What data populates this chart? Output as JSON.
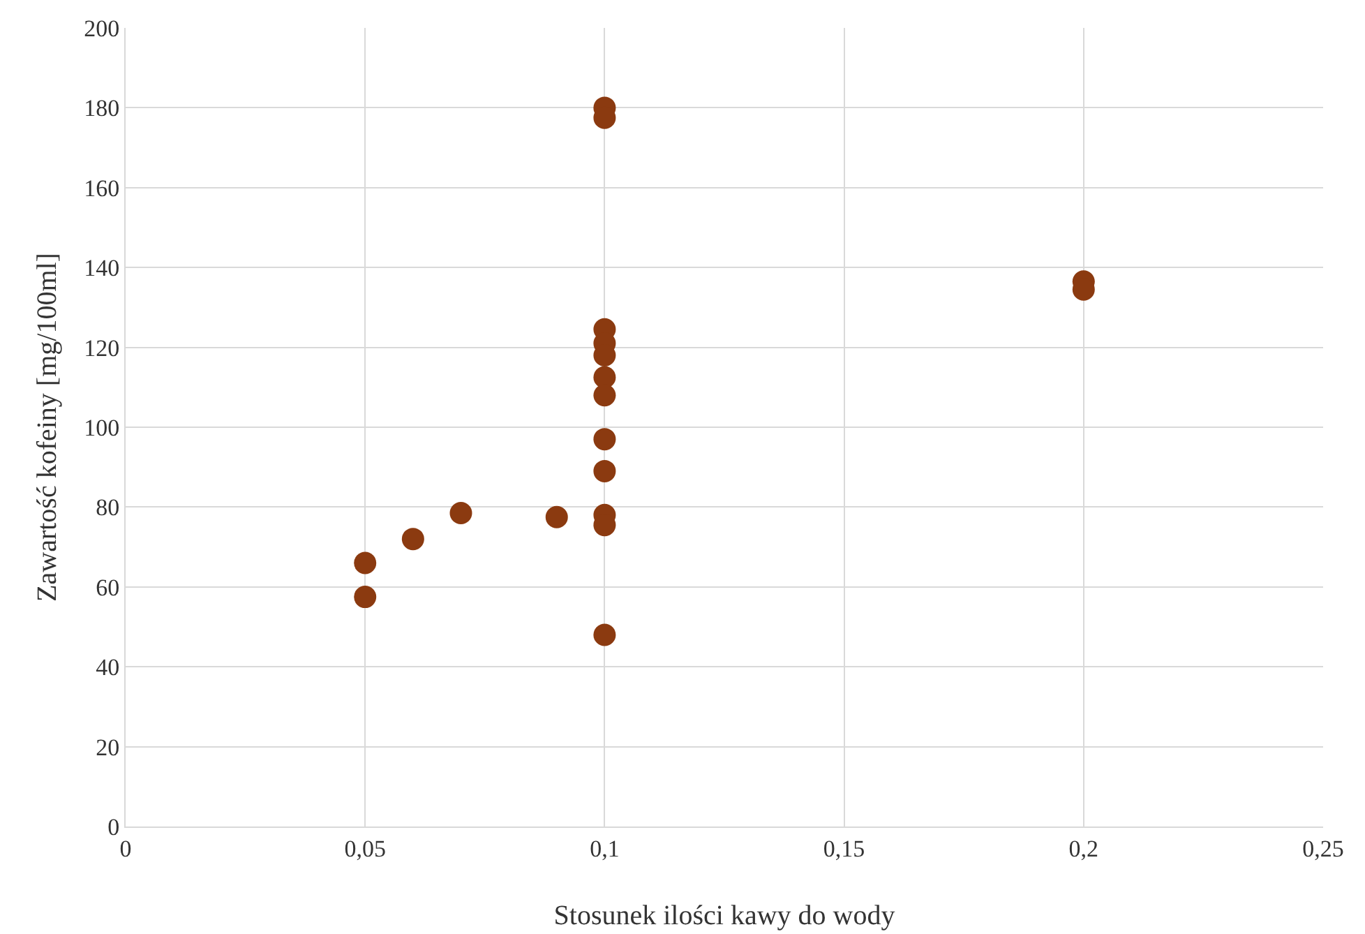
{
  "chart_data": {
    "type": "scatter",
    "xlabel": "Stosunek ilości kawy do wody",
    "ylabel": "Zawartość kofeiny [mg/100ml]",
    "x": [
      0.05,
      0.05,
      0.06,
      0.07,
      0.09,
      0.1,
      0.1,
      0.1,
      0.1,
      0.1,
      0.1,
      0.1,
      0.1,
      0.1,
      0.1,
      0.1,
      0.1,
      0.2,
      0.2
    ],
    "series": [
      {
        "color": "#8b3a10",
        "values": [
          66,
          57.5,
          72,
          78.5,
          77.5,
          180,
          177.5,
          124.5,
          121,
          118,
          112.5,
          108,
          97,
          89,
          78,
          75.5,
          48,
          136.5,
          134.5
        ]
      }
    ],
    "xlim": [
      0,
      0.25
    ],
    "xticks": [
      {
        "value": 0,
        "label": "0"
      },
      {
        "value": 0.05,
        "label": "0,05"
      },
      {
        "value": 0.1,
        "label": "0,1"
      },
      {
        "value": 0.15,
        "label": "0,15"
      },
      {
        "value": 0.2,
        "label": "0,2"
      },
      {
        "value": 0.25,
        "label": "0,25"
      }
    ],
    "ylim": [
      0,
      200
    ],
    "yticks": [
      0,
      20,
      40,
      60,
      80,
      100,
      120,
      140,
      160,
      180,
      200
    ],
    "grid": true,
    "marker": "circle"
  }
}
